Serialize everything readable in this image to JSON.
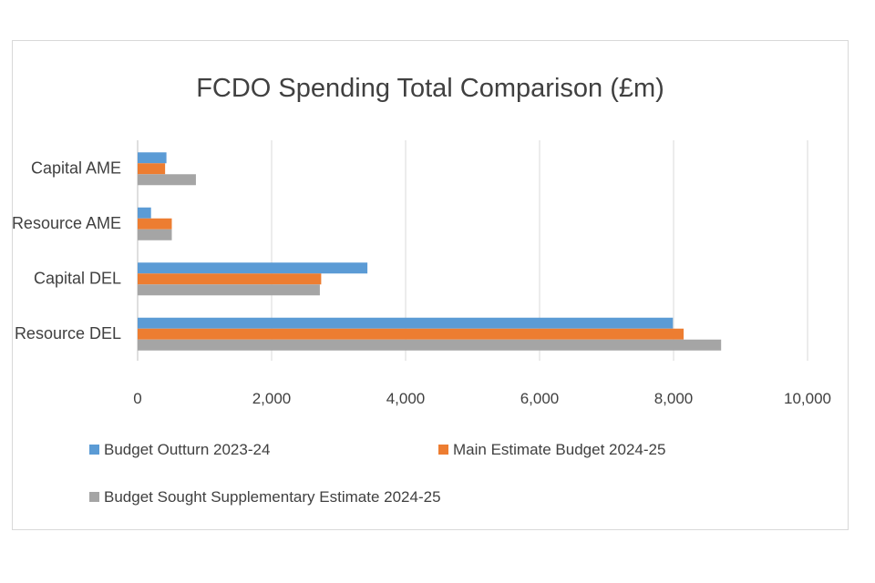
{
  "chart_data": {
    "type": "bar",
    "orientation": "horizontal",
    "title": "FCDO Spending Total Comparison (£m)",
    "xlabel": "",
    "ylabel": "",
    "categories": [
      "Capital AME",
      "Resource AME",
      "Capital DEL",
      "Resource DEL"
    ],
    "xlim": [
      0,
      10000
    ],
    "xticks": [
      0,
      2000,
      4000,
      6000,
      8000,
      10000
    ],
    "xtick_labels": [
      "0",
      "2,000",
      "4,000",
      "6,000",
      "8,000",
      "10,000"
    ],
    "grid": true,
    "legend_position": "bottom",
    "series": [
      {
        "name": "Budget Outturn 2023-24",
        "color": "#5b9bd5",
        "values": [
          430,
          200,
          3430,
          7990
        ]
      },
      {
        "name": "Main Estimate Budget 2024-25",
        "color": "#ed7d31",
        "values": [
          410,
          510,
          2740,
          8150
        ]
      },
      {
        "name": "Budget Sought Supplementary Estimate 2024-25",
        "color": "#a5a5a5",
        "values": [
          870,
          510,
          2720,
          8710
        ]
      }
    ]
  }
}
